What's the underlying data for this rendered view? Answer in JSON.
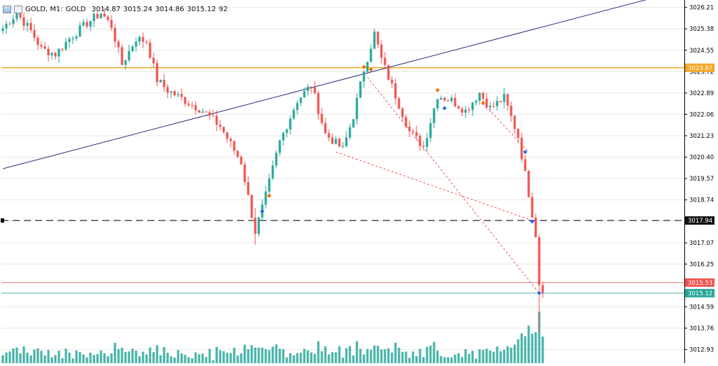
{
  "header": {
    "symbol_label": "GOLD, M1:",
    "description": "GOLD",
    "open": "3014.87",
    "high": "3015.24",
    "low": "3014.86",
    "close": "3015.12",
    "tick_volume": "92"
  },
  "price_axis": {
    "ticks": [
      "3026.21",
      "3025.38",
      "3024.55",
      "3023.72",
      "3022.89",
      "3022.06",
      "3021.23",
      "3020.40",
      "3019.57",
      "3018.74",
      "3017.07",
      "3016.25",
      "3014.59",
      "3013.76",
      "3012.93"
    ],
    "tick_values": [
      3026.21,
      3025.38,
      3024.55,
      3023.72,
      3022.89,
      3022.06,
      3021.23,
      3020.4,
      3019.57,
      3018.74,
      3017.07,
      3016.25,
      3014.59,
      3013.76,
      3012.93
    ]
  },
  "levels": {
    "resistance": {
      "value": 3023.87,
      "label": "3023.87",
      "color": "#f5a623"
    },
    "dashed": {
      "value": 3017.94,
      "label": "3017.94",
      "color": "#111111"
    },
    "ask": {
      "value": 3015.53,
      "label": "3015.53",
      "color": "#e57373"
    },
    "bid": {
      "value": 3015.12,
      "label": "3015.12",
      "color": "#4db6ac"
    }
  },
  "colors": {
    "bull": "#26a69a",
    "bear": "#ef5350",
    "trendline": "#2b2b7a",
    "grid": "#e6e6e6",
    "trade_line": "#ef5350",
    "buy_marker": "#2962ff",
    "sell_marker": "#ef6c00"
  },
  "chart_data": {
    "type": "candlestick",
    "symbol": "GOLD",
    "timeframe": "M1",
    "ylim": [
      3012.4,
      3026.5
    ],
    "n_bars": 155,
    "anchors": [
      [
        0,
        3025.4
      ],
      [
        4,
        3026.0
      ],
      [
        8,
        3025.3
      ],
      [
        11,
        3024.6
      ],
      [
        15,
        3024.4
      ],
      [
        19,
        3025.0
      ],
      [
        24,
        3025.6
      ],
      [
        28,
        3026.0
      ],
      [
        31,
        3025.5
      ],
      [
        34,
        3024.0
      ],
      [
        38,
        3025.0
      ],
      [
        41,
        3024.9
      ],
      [
        44,
        3023.4
      ],
      [
        47,
        3023.0
      ],
      [
        52,
        3022.6
      ],
      [
        57,
        3022.2
      ],
      [
        62,
        3021.6
      ],
      [
        68,
        3020.2
      ],
      [
        72,
        3017.5
      ],
      [
        75,
        3018.9
      ],
      [
        79,
        3021.0
      ],
      [
        84,
        3022.6
      ],
      [
        88,
        3023.2
      ],
      [
        92,
        3021.3
      ],
      [
        97,
        3020.7
      ],
      [
        100,
        3022.0
      ],
      [
        103,
        3023.8
      ],
      [
        106,
        3025.2
      ],
      [
        108,
        3024.2
      ],
      [
        112,
        3022.8
      ],
      [
        116,
        3021.4
      ],
      [
        120,
        3020.8
      ],
      [
        124,
        3022.8
      ],
      [
        128,
        3022.6
      ],
      [
        132,
        3022.2
      ],
      [
        136,
        3022.9
      ],
      [
        139,
        3022.3
      ],
      [
        143,
        3022.7
      ],
      [
        147,
        3021.2
      ],
      [
        150,
        3019.0
      ],
      [
        152,
        3017.4
      ],
      [
        153,
        3015.5
      ],
      [
        154,
        3015.12
      ]
    ],
    "trendline": {
      "x": [
        0,
        186
      ],
      "y": [
        3019.95,
        3026.6
      ]
    },
    "trade_lines": [
      {
        "from": [
          95,
          3020.6
        ],
        "to": [
          151,
          3017.94
        ]
      },
      {
        "from": [
          104,
          3023.5
        ],
        "to": [
          153,
          3015.12
        ]
      },
      {
        "from": [
          137,
          3022.5
        ],
        "to": [
          150,
          3020.6
        ]
      }
    ],
    "markers": [
      {
        "bar": 74,
        "price": 3018.3,
        "side": "buy"
      },
      {
        "bar": 76,
        "price": 3018.9,
        "side": "sell"
      },
      {
        "bar": 103,
        "price": 3023.9,
        "side": "sell"
      },
      {
        "bar": 105,
        "price": 3023.8,
        "side": "sell"
      },
      {
        "bar": 124,
        "price": 3023.0,
        "side": "sell"
      },
      {
        "bar": 126,
        "price": 3022.3,
        "side": "buy"
      },
      {
        "bar": 137,
        "price": 3022.5,
        "side": "sell"
      },
      {
        "bar": 149,
        "price": 3020.6,
        "side": "buy"
      },
      {
        "bar": 151,
        "price": 3017.9,
        "side": "buy"
      },
      {
        "bar": 153,
        "price": 3015.12,
        "side": "buy"
      }
    ]
  }
}
